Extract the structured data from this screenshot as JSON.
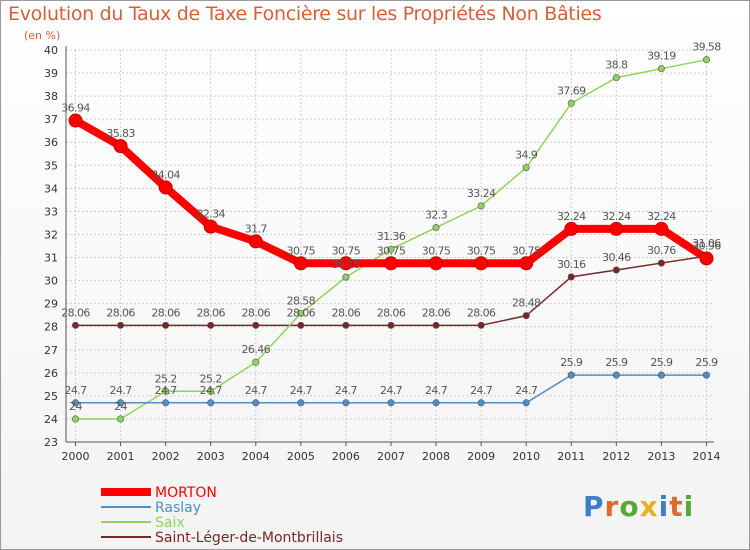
{
  "header": {
    "title": "Evolution du Taux de Taxe Foncière sur les Propriétés Non Bâties",
    "subtitle": "(en %)"
  },
  "brand": {
    "letters": [
      "P",
      "r",
      "o",
      "x",
      "i",
      "t",
      "i"
    ],
    "colors": [
      "#3b7fc4",
      "#e06a2a",
      "#58a838",
      "#e8b021",
      "#3b7fc4",
      "#e06a2a",
      "#58a838"
    ]
  },
  "chart_data": {
    "type": "line",
    "title": "Evolution du Taux de Taxe Foncière sur les Propriétés Non Bâties",
    "subtitle": "(en %)",
    "x": [
      "2000",
      "2001",
      "2002",
      "2003",
      "2004",
      "2005",
      "2006",
      "2007",
      "2008",
      "2009",
      "2010",
      "2011",
      "2012",
      "2013",
      "2014"
    ],
    "ylim": [
      23,
      40
    ],
    "yticks": [
      "23",
      "24",
      "25",
      "26",
      "27",
      "28",
      "29",
      "30",
      "31",
      "32",
      "33",
      "34",
      "35",
      "36",
      "37",
      "38",
      "39",
      "40"
    ],
    "grid": true,
    "legend_position": "bottom-left",
    "series": [
      {
        "name": "MORTON",
        "color": "#ff0000",
        "values": [
          36.94,
          35.83,
          34.04,
          32.34,
          31.7,
          30.75,
          30.75,
          30.75,
          30.75,
          30.75,
          30.75,
          32.24,
          32.24,
          32.24,
          30.96
        ],
        "labels": [
          "36.94",
          "35.83",
          "34.04",
          "32.34",
          "31.7",
          "30.75",
          "30.75",
          "30.75",
          "30.75",
          "30.75",
          "30.75",
          "32.24",
          "32.24",
          "32.24",
          "30.96"
        ]
      },
      {
        "name": "Raslay",
        "color": "#4f8fc9",
        "values": [
          24.7,
          24.7,
          24.7,
          24.7,
          24.7,
          24.7,
          24.7,
          24.7,
          24.7,
          24.7,
          24.7,
          25.9,
          25.9,
          25.9,
          25.9
        ],
        "labels": [
          "24.7",
          "24.7",
          "24.7",
          "24.7",
          "24.7",
          "24.7",
          "24.7",
          "24.7",
          "24.7",
          "24.7",
          "24.7",
          "25.9",
          "25.9",
          "25.9",
          "25.9"
        ]
      },
      {
        "name": "Saix",
        "color": "#8ed45c",
        "values": [
          24,
          24,
          25.2,
          25.2,
          26.46,
          28.58,
          30.15,
          31.36,
          32.3,
          33.24,
          34.9,
          37.69,
          38.8,
          39.19,
          39.58
        ],
        "labels": [
          "24",
          "24",
          "25.2",
          "25.2",
          "26.46",
          "28.58",
          "30.15",
          "31.36",
          "32.3",
          "33.24",
          "34.9",
          "37.69",
          "38.8",
          "39.19",
          "39.58"
        ]
      },
      {
        "name": "Saint-Léger-de-Montbrillais",
        "color": "#7a2626",
        "values": [
          28.06,
          28.06,
          28.06,
          28.06,
          28.06,
          28.06,
          28.06,
          28.06,
          28.06,
          28.06,
          28.48,
          30.16,
          30.46,
          30.76,
          31.06
        ],
        "labels": [
          "28.06",
          "28.06",
          "28.06",
          "28.06",
          "28.06",
          "28.06",
          "28.06",
          "28.06",
          "28.06",
          "28.06",
          "28.48",
          "30.16",
          "30.46",
          "30.76",
          "31.06"
        ]
      }
    ]
  }
}
